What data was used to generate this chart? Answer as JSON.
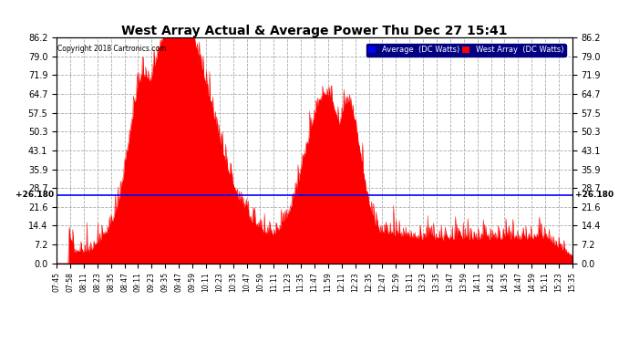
{
  "title": "West Array Actual & Average Power Thu Dec 27 15:41",
  "copyright": "Copyright 2018 Cartronics.com",
  "avg_line_y": 26.18,
  "avg_label": "+26.180",
  "ylim": [
    0.0,
    86.2
  ],
  "yticks": [
    0.0,
    7.2,
    14.4,
    21.6,
    28.7,
    35.9,
    43.1,
    50.3,
    57.5,
    64.7,
    71.9,
    79.0,
    86.2
  ],
  "xtick_labels": [
    "07:45",
    "07:58",
    "08:11",
    "08:23",
    "08:35",
    "08:47",
    "09:11",
    "09:23",
    "09:35",
    "09:47",
    "09:59",
    "10:11",
    "10:23",
    "10:35",
    "10:47",
    "10:59",
    "11:11",
    "11:23",
    "11:35",
    "11:47",
    "11:59",
    "12:11",
    "12:23",
    "12:35",
    "12:47",
    "12:59",
    "13:11",
    "13:23",
    "13:35",
    "13:47",
    "13:59",
    "14:11",
    "14:23",
    "14:35",
    "14:47",
    "14:59",
    "15:11",
    "15:23",
    "15:35"
  ],
  "bg_color": "#ffffff",
  "plot_bg_color": "#ffffff",
  "grid_color": "#aaaaaa",
  "area_color": "red",
  "avg_line_color": "blue",
  "title_fontsize": 11,
  "legend_avg_color": "blue",
  "legend_west_color": "red",
  "legend_avg_label": "Average  (DC Watts)",
  "legend_west_label": "West Array  (DC Watts)"
}
